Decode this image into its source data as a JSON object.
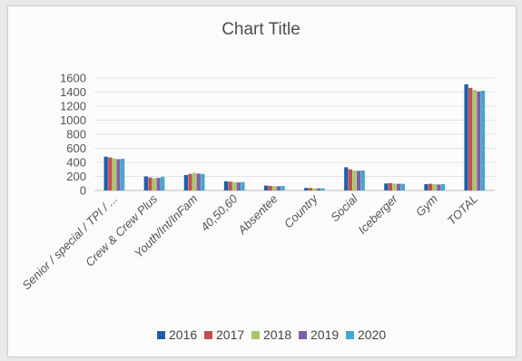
{
  "chart_data": {
    "type": "bar",
    "title": "Chart Title",
    "xlabel": "",
    "ylabel": "",
    "ylim": [
      0,
      1600
    ],
    "yticks": [
      0,
      200,
      400,
      600,
      800,
      1000,
      1200,
      1400,
      1600
    ],
    "grid": true,
    "legend_position": "bottom",
    "categories": [
      "Senior / special / TPI / ...",
      "Crew & Crew Plus",
      "Youth/Int/InFam",
      "40,50,60",
      "Absentee",
      "Country",
      "Social",
      "Iceberger",
      "Gym",
      "TOTAL"
    ],
    "series": [
      {
        "name": "2016",
        "color": "#1f5fa8",
        "values": [
          480,
          200,
          220,
          130,
          70,
          35,
          330,
          100,
          90,
          1510
        ]
      },
      {
        "name": "2017",
        "color": "#c0504d",
        "values": [
          470,
          185,
          235,
          125,
          65,
          35,
          300,
          105,
          95,
          1460
        ]
      },
      {
        "name": "2018",
        "color": "#a6c96a",
        "values": [
          455,
          175,
          250,
          120,
          60,
          30,
          285,
          95,
          90,
          1430
        ]
      },
      {
        "name": "2019",
        "color": "#7c5fa4",
        "values": [
          445,
          180,
          240,
          115,
          60,
          30,
          280,
          95,
          85,
          1410
        ]
      },
      {
        "name": "2020",
        "color": "#3fa9d1",
        "values": [
          450,
          195,
          235,
          120,
          65,
          30,
          285,
          95,
          90,
          1420
        ]
      }
    ]
  }
}
